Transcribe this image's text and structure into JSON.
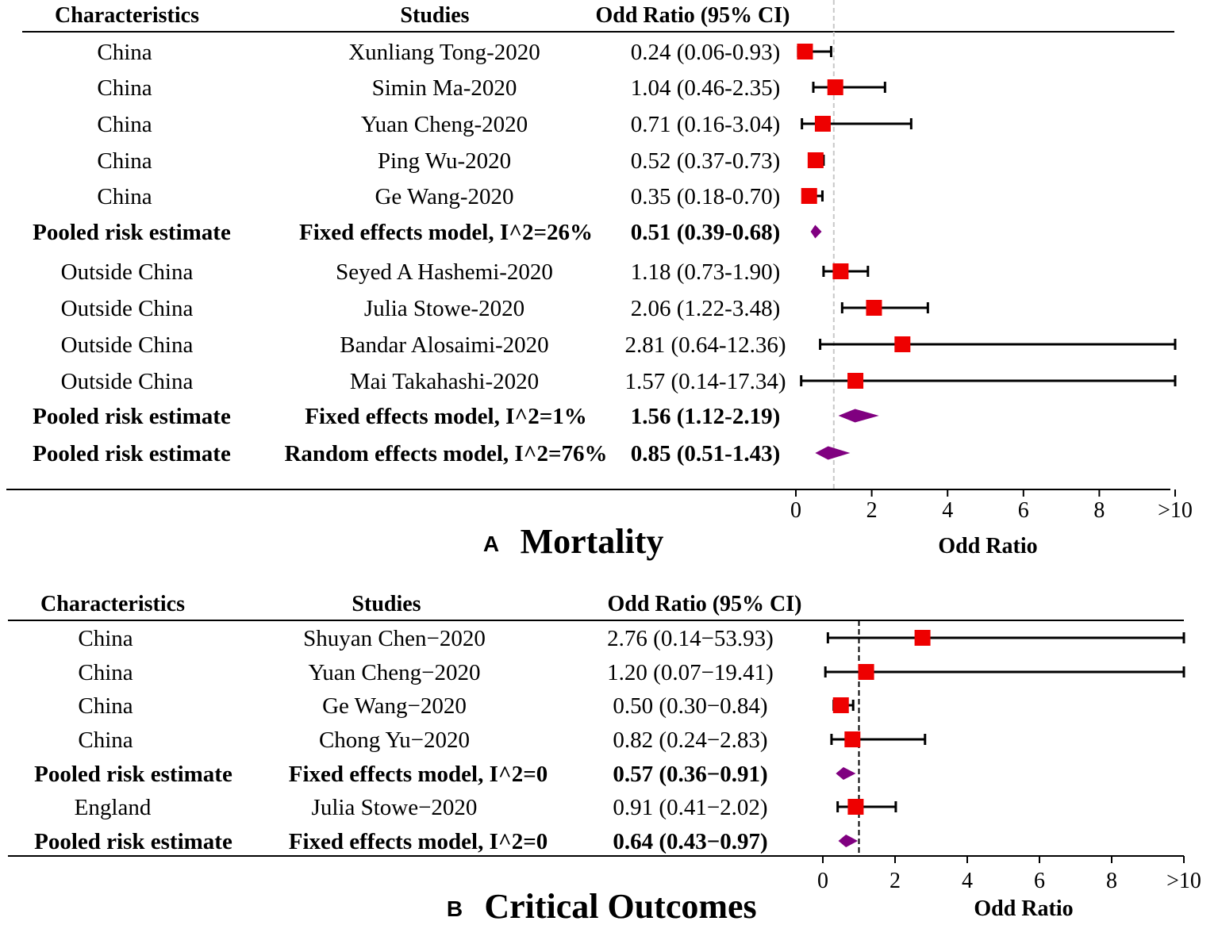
{
  "colors": {
    "marker": "#ee0000",
    "pooled": "#800080",
    "line": "#000000",
    "ref_line_a": "#c8c8c8",
    "ref_line_b": "#000000"
  },
  "chart_data": [
    {
      "type": "forest",
      "panel_letter": "A",
      "title": "Mortality",
      "xlabel": "Odd Ratio",
      "xlim": [
        0,
        10
      ],
      "xticks": [
        "0",
        "2",
        "4",
        "6",
        "8",
        ">10"
      ],
      "reference_line": 1,
      "reference_style": "dashed-gray",
      "headers": {
        "characteristics": "Characteristics",
        "studies": "Studies",
        "or_ci": "Odd Ratio (95% CI)"
      },
      "rows": [
        {
          "kind": "study",
          "characteristic": "China",
          "study": "Xunliang Tong-2020",
          "ci_text": "0.24 (0.06-0.93)",
          "or": 0.24,
          "lo": 0.06,
          "hi": 0.93
        },
        {
          "kind": "study",
          "characteristic": "China",
          "study": "Simin Ma-2020",
          "ci_text": "1.04 (0.46-2.35)",
          "or": 1.04,
          "lo": 0.46,
          "hi": 2.35
        },
        {
          "kind": "study",
          "characteristic": "China",
          "study": "Yuan Cheng-2020",
          "ci_text": "0.71 (0.16-3.04)",
          "or": 0.71,
          "lo": 0.16,
          "hi": 3.04
        },
        {
          "kind": "study",
          "characteristic": "China",
          "study": "Ping Wu-2020",
          "ci_text": "0.52 (0.37-0.73)",
          "or": 0.52,
          "lo": 0.37,
          "hi": 0.73
        },
        {
          "kind": "study",
          "characteristic": "China",
          "study": "Ge Wang-2020",
          "ci_text": "0.35 (0.18-0.70)",
          "or": 0.35,
          "lo": 0.18,
          "hi": 0.7
        },
        {
          "kind": "pooled",
          "characteristic": "Pooled risk estimate",
          "study": "Fixed effects model, I^2=26%",
          "ci_text": "0.51 (0.39-0.68)",
          "or": 0.51,
          "lo": 0.39,
          "hi": 0.68
        },
        {
          "kind": "study",
          "characteristic": "Outside China",
          "study": "Seyed A Hashemi-2020",
          "ci_text": "1.18 (0.73-1.90)",
          "or": 1.18,
          "lo": 0.73,
          "hi": 1.9
        },
        {
          "kind": "study",
          "characteristic": "Outside China",
          "study": "Julia Stowe-2020",
          "ci_text": "2.06 (1.22-3.48)",
          "or": 2.06,
          "lo": 1.22,
          "hi": 3.48
        },
        {
          "kind": "study",
          "characteristic": "Outside China",
          "study": "Bandar Alosaimi-2020",
          "ci_text": "2.81 (0.64-12.36)",
          "or": 2.81,
          "lo": 0.64,
          "hi": 12.36
        },
        {
          "kind": "study",
          "characteristic": "Outside China",
          "study": "Mai Takahashi-2020",
          "ci_text": "1.57 (0.14-17.34)",
          "or": 1.57,
          "lo": 0.14,
          "hi": 17.34
        },
        {
          "kind": "pooled",
          "characteristic": "Pooled risk estimate",
          "study": "Fixed effects model, I^2=1%",
          "ci_text": "1.56 (1.12-2.19)",
          "or": 1.56,
          "lo": 1.12,
          "hi": 2.19
        },
        {
          "kind": "pooled",
          "characteristic": "Pooled risk estimate",
          "study": "Random effects model, I^2=76%",
          "ci_text": "0.85 (0.51-1.43)",
          "or": 0.85,
          "lo": 0.51,
          "hi": 1.43
        }
      ]
    },
    {
      "type": "forest",
      "panel_letter": "B",
      "title": "Critical Outcomes",
      "xlabel": "Odd Ratio",
      "xlim": [
        0,
        10
      ],
      "xticks": [
        "0",
        "2",
        "4",
        "6",
        "8",
        ">10"
      ],
      "reference_line": 1,
      "reference_style": "dashed-black",
      "headers": {
        "characteristics": "Characteristics",
        "studies": "Studies",
        "or_ci": "Odd Ratio (95% CI)"
      },
      "rows": [
        {
          "kind": "study",
          "characteristic": "China",
          "study": "Shuyan Chen−2020",
          "ci_text": "2.76 (0.14−53.93)",
          "or": 2.76,
          "lo": 0.14,
          "hi": 53.93
        },
        {
          "kind": "study",
          "characteristic": "China",
          "study": "Yuan Cheng−2020",
          "ci_text": "1.20 (0.07−19.41)",
          "or": 1.2,
          "lo": 0.07,
          "hi": 19.41
        },
        {
          "kind": "study",
          "characteristic": "China",
          "study": "Ge Wang−2020",
          "ci_text": "0.50 (0.30−0.84)",
          "or": 0.5,
          "lo": 0.3,
          "hi": 0.84
        },
        {
          "kind": "study",
          "characteristic": "China",
          "study": "Chong Yu−2020",
          "ci_text": "0.82 (0.24−2.83)",
          "or": 0.82,
          "lo": 0.24,
          "hi": 2.83
        },
        {
          "kind": "pooled",
          "characteristic": "Pooled risk estimate",
          "study": "Fixed effects model, I^2=0",
          "ci_text": "0.57 (0.36−0.91)",
          "or": 0.57,
          "lo": 0.36,
          "hi": 0.91
        },
        {
          "kind": "study",
          "characteristic": "England",
          "study": "Julia Stowe−2020",
          "ci_text": "0.91 (0.41−2.02)",
          "or": 0.91,
          "lo": 0.41,
          "hi": 2.02
        },
        {
          "kind": "pooled",
          "characteristic": "Pooled risk estimate",
          "study": "Fixed effects model, I^2=0",
          "ci_text": "0.64 (0.43−0.97)",
          "or": 0.64,
          "lo": 0.43,
          "hi": 0.97
        }
      ]
    }
  ]
}
